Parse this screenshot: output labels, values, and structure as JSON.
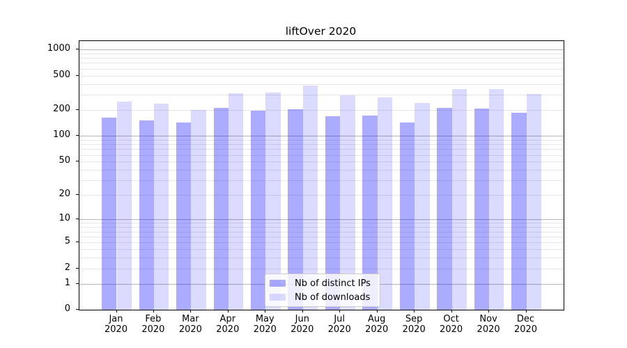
{
  "chart_data": {
    "type": "bar",
    "title": "liftOver 2020",
    "categories": [
      "Jan 2020",
      "Feb 2020",
      "Mar 2020",
      "Apr 2020",
      "May 2020",
      "Jun 2020",
      "Jul 2020",
      "Aug 2020",
      "Sep 2020",
      "Oct 2020",
      "Nov 2020",
      "Dec 2020"
    ],
    "series": [
      {
        "name": "Nb of distinct IPs",
        "color": "rgba(0,0,255,0.33)",
        "values": [
          163,
          152,
          143,
          212,
          196,
          204,
          168,
          173,
          143,
          212,
          208,
          186
        ]
      },
      {
        "name": "Nb of downloads",
        "color": "rgba(0,0,255,0.14)",
        "values": [
          250,
          235,
          200,
          315,
          320,
          380,
          295,
          280,
          243,
          348,
          350,
          308
        ]
      }
    ],
    "xlabel": "",
    "ylabel": "",
    "yscale": "log1p",
    "ylim": [
      0,
      1250
    ],
    "y_tick_values": [
      1000,
      500,
      200,
      100,
      50,
      20,
      10,
      5,
      2,
      1,
      0
    ],
    "grid": {
      "on": true,
      "major_values": [
        1,
        10,
        100,
        1000
      ],
      "minor_values": [
        2,
        3,
        4,
        5,
        6,
        7,
        8,
        9,
        20,
        30,
        40,
        50,
        60,
        70,
        80,
        90,
        200,
        300,
        400,
        500,
        600,
        700,
        800,
        900
      ],
      "major_color": "#b6b6b6",
      "minor_color": "#e7e7e7"
    },
    "legend_position": "lower-center-inside",
    "bar_width_fraction": 0.4
  },
  "legend": {
    "items": [
      {
        "label": "Nb of distinct IPs",
        "color": "rgba(0,0,255,0.33)"
      },
      {
        "label": "Nb of downloads",
        "color": "rgba(0,0,255,0.14)"
      }
    ]
  },
  "colors": {
    "distinct_ips_bar": "#a9a9f6",
    "downloads_bar": "#dadaf9",
    "axis": "#000000",
    "background": "#ffffff"
  }
}
